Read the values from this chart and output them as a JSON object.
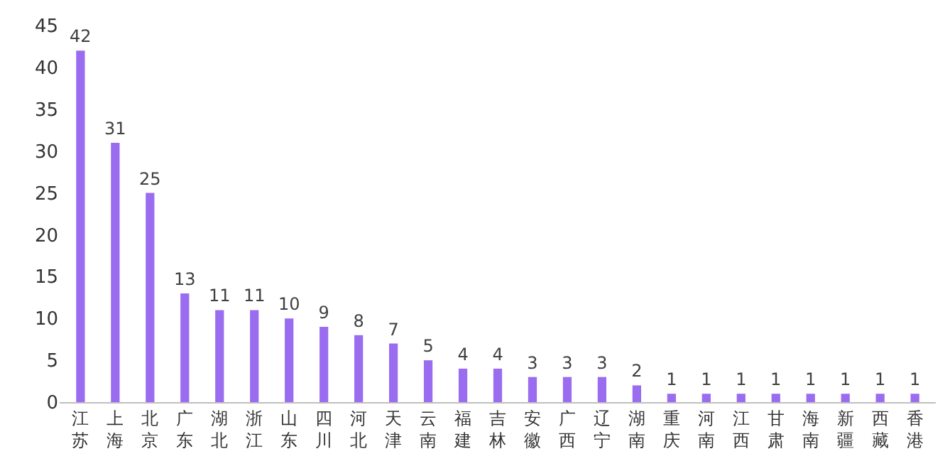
{
  "chart_data": {
    "type": "bar",
    "categories": [
      "江苏",
      "上海",
      "北京",
      "广东",
      "湖北",
      "浙江",
      "山东",
      "四川",
      "河北",
      "天津",
      "云南",
      "福建",
      "吉林",
      "安徽",
      "广西",
      "辽宁",
      "湖南",
      "重庆",
      "河南",
      "江西",
      "甘肃",
      "海南",
      "新疆",
      "西藏",
      "香港"
    ],
    "values": [
      42,
      31,
      25,
      13,
      11,
      11,
      10,
      9,
      8,
      7,
      5,
      4,
      4,
      3,
      3,
      3,
      2,
      1,
      1,
      1,
      1,
      1,
      1,
      1,
      1
    ],
    "color": "#9a6cf0",
    "ylim": [
      0,
      45
    ],
    "yticks": [
      0,
      5,
      10,
      15,
      20,
      25,
      30,
      35,
      40,
      45
    ],
    "legend": false,
    "data_labels": true
  }
}
